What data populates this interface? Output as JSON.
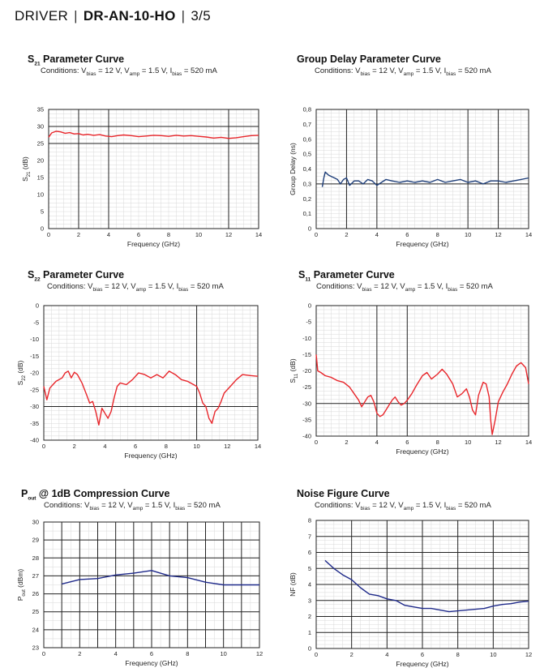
{
  "header": {
    "brand": "DRIVER",
    "model": "DR-AN-10-HO",
    "page": "3/5",
    "sep": "|"
  },
  "conditions_text": {
    "prefix": "Conditions: V",
    "v1_sub": "bias",
    "v1_val": " = 12 V, V",
    "v2_sub": "amp",
    "v2_val": " = 1.5 V, I",
    "i_sub": "bias",
    "i_val": " = 520 mA"
  },
  "chart_data": [
    {
      "id": "s21",
      "type": "line",
      "title_main": "S",
      "title_sub": "21",
      "title_rest": " Parameter Curve",
      "xlabel": "Frequency (GHz)",
      "ylabel_main": "S",
      "ylabel_sub": "21",
      "ylabel_rest": " (dB)",
      "xlim": [
        0,
        14
      ],
      "ylim": [
        0,
        35
      ],
      "xticks": [
        0,
        2,
        4,
        6,
        8,
        10,
        12,
        14
      ],
      "yticks": [
        0,
        5,
        10,
        15,
        20,
        25,
        30,
        35
      ],
      "xmajor": [
        2,
        4,
        12
      ],
      "ymajor": [
        30,
        25
      ],
      "color": "#e8262b",
      "series": [
        {
          "name": "S21",
          "x": [
            0,
            0.2,
            0.5,
            0.8,
            1.1,
            1.4,
            1.7,
            2.0,
            2.3,
            2.6,
            3.0,
            3.4,
            3.8,
            4.2,
            4.6,
            5.0,
            5.5,
            6.0,
            6.5,
            7.0,
            7.5,
            8.0,
            8.5,
            9.0,
            9.5,
            10.0,
            10.5,
            11.0,
            11.5,
            12.0,
            12.5,
            13.0,
            13.5,
            14.0
          ],
          "y": [
            26.8,
            28.1,
            28.6,
            28.4,
            28.0,
            28.2,
            27.8,
            27.9,
            27.5,
            27.7,
            27.4,
            27.6,
            27.2,
            27.0,
            27.3,
            27.5,
            27.3,
            27.0,
            27.2,
            27.4,
            27.3,
            27.1,
            27.4,
            27.2,
            27.3,
            27.1,
            26.9,
            26.6,
            26.8,
            26.5,
            26.7,
            27.0,
            27.3,
            27.4
          ]
        }
      ]
    },
    {
      "id": "gd",
      "type": "line",
      "title_main": "Group Delay Parameter Curve",
      "title_sub": "",
      "title_rest": "",
      "xlabel": "Frequency (GHz)",
      "ylabel_main": "Group Delay (ns)",
      "ylabel_sub": "",
      "ylabel_rest": "",
      "xlim": [
        0,
        14
      ],
      "ylim": [
        0,
        0.8
      ],
      "xticks": [
        0,
        2,
        4,
        6,
        8,
        10,
        12,
        14
      ],
      "yticks": [
        0,
        0.1,
        0.2,
        0.3,
        0.4,
        0.5,
        0.6,
        0.7,
        0.8
      ],
      "ytick_labels": [
        "0",
        "0,1",
        "0,2",
        "0,3",
        "0,4",
        "0,5",
        "0,6",
        "0,7",
        "0,8"
      ],
      "xmajor": [
        2,
        4,
        10,
        12
      ],
      "ymajor": [
        0.3
      ],
      "color": "#1f3f7a",
      "series": [
        {
          "name": "Group Delay",
          "x": [
            0.4,
            0.5,
            0.6,
            0.8,
            1.0,
            1.2,
            1.4,
            1.6,
            1.8,
            2.0,
            2.2,
            2.5,
            2.8,
            3.1,
            3.4,
            3.7,
            4.0,
            4.3,
            4.6,
            5.0,
            5.5,
            6.0,
            6.5,
            7.0,
            7.5,
            8.0,
            8.5,
            9.0,
            9.5,
            10.0,
            10.5,
            11.0,
            11.5,
            12.0,
            12.5,
            13.0,
            13.5,
            14.0
          ],
          "y": [
            0.28,
            0.34,
            0.38,
            0.36,
            0.35,
            0.34,
            0.33,
            0.3,
            0.33,
            0.34,
            0.29,
            0.32,
            0.32,
            0.3,
            0.33,
            0.32,
            0.29,
            0.31,
            0.33,
            0.32,
            0.31,
            0.32,
            0.31,
            0.32,
            0.31,
            0.33,
            0.31,
            0.32,
            0.33,
            0.31,
            0.32,
            0.3,
            0.32,
            0.32,
            0.31,
            0.32,
            0.33,
            0.34
          ]
        }
      ]
    },
    {
      "id": "s22",
      "type": "line",
      "title_main": "S",
      "title_sub": "22",
      "title_rest": " Parameter Curve",
      "xlabel": "Frequency (GHz)",
      "ylabel_main": "S",
      "ylabel_sub": "22",
      "ylabel_rest": " (dB)",
      "xlim": [
        0,
        14
      ],
      "ylim": [
        -40,
        0
      ],
      "xticks": [
        0,
        2,
        4,
        6,
        8,
        10,
        12,
        14
      ],
      "yticks": [
        0,
        -5,
        -10,
        -15,
        -20,
        -25,
        -30,
        -35,
        -40
      ],
      "xmajor": [
        10
      ],
      "ymajor": [
        -30
      ],
      "color": "#e8262b",
      "series": [
        {
          "name": "S22",
          "x": [
            0,
            0.2,
            0.4,
            0.6,
            0.8,
            1.0,
            1.2,
            1.4,
            1.6,
            1.8,
            2.0,
            2.2,
            2.5,
            2.8,
            3.0,
            3.2,
            3.4,
            3.6,
            3.8,
            4.0,
            4.2,
            4.4,
            4.6,
            4.8,
            5.0,
            5.4,
            5.8,
            6.2,
            6.6,
            7.0,
            7.4,
            7.8,
            8.2,
            8.6,
            9.0,
            9.4,
            9.8,
            10.0,
            10.2,
            10.4,
            10.6,
            10.8,
            11.0,
            11.2,
            11.4,
            11.6,
            11.8,
            12.2,
            12.6,
            13.0,
            13.5,
            14.0
          ],
          "y": [
            -24.0,
            -28.0,
            -24.5,
            -23.5,
            -22.5,
            -22.0,
            -21.5,
            -20.0,
            -19.5,
            -21.5,
            -19.8,
            -20.5,
            -23.0,
            -26.5,
            -29.0,
            -28.5,
            -31.5,
            -35.5,
            -30.5,
            -32.0,
            -33.5,
            -31.5,
            -27.5,
            -24.0,
            -23.0,
            -23.5,
            -22.0,
            -20.0,
            -20.5,
            -21.5,
            -20.5,
            -21.5,
            -19.5,
            -20.5,
            -22.0,
            -22.5,
            -23.5,
            -24.0,
            -26.0,
            -29.0,
            -30.0,
            -33.5,
            -35.0,
            -31.5,
            -30.5,
            -28.5,
            -26.0,
            -24.0,
            -22.0,
            -20.5,
            -20.8,
            -21.0
          ]
        }
      ]
    },
    {
      "id": "s11",
      "type": "line",
      "title_main": "S",
      "title_sub": "11",
      "title_rest": " Parameter Curve",
      "xlabel": "Frequency (GHz)",
      "ylabel_main": "S",
      "ylabel_sub": "11",
      "ylabel_rest": " (dB)",
      "xlim": [
        0,
        14
      ],
      "ylim": [
        -40,
        0
      ],
      "xticks": [
        0,
        2,
        4,
        6,
        8,
        10,
        12,
        14
      ],
      "yticks": [
        0,
        -5,
        -10,
        -15,
        -20,
        -25,
        -30,
        -35,
        -40
      ],
      "xmajor": [
        4,
        6
      ],
      "ymajor": [
        -30
      ],
      "color": "#e8262b",
      "series": [
        {
          "name": "S11",
          "x": [
            0,
            0.1,
            0.3,
            0.6,
            1.0,
            1.4,
            1.8,
            2.2,
            2.5,
            2.8,
            3.0,
            3.2,
            3.4,
            3.6,
            3.8,
            4.0,
            4.2,
            4.4,
            4.6,
            4.8,
            5.0,
            5.2,
            5.4,
            5.6,
            5.8,
            6.0,
            6.3,
            6.6,
            7.0,
            7.3,
            7.6,
            8.0,
            8.3,
            8.6,
            9.0,
            9.3,
            9.6,
            9.9,
            10.1,
            10.3,
            10.5,
            10.7,
            11.0,
            11.2,
            11.4,
            11.5,
            11.6,
            11.8,
            12.0,
            12.3,
            12.6,
            12.9,
            13.2,
            13.5,
            13.8,
            14.0
          ],
          "y": [
            -15.0,
            -20.0,
            -20.5,
            -21.5,
            -22.0,
            -23.0,
            -23.5,
            -25.0,
            -27.0,
            -29.0,
            -31.0,
            -29.5,
            -28.0,
            -27.5,
            -29.5,
            -33.0,
            -34.0,
            -33.5,
            -32.0,
            -30.5,
            -29.0,
            -28.0,
            -29.5,
            -30.5,
            -30.0,
            -29.0,
            -27.0,
            -24.5,
            -21.5,
            -20.5,
            -22.5,
            -21.0,
            -19.5,
            -21.0,
            -24.0,
            -28.0,
            -27.0,
            -25.5,
            -28.0,
            -32.0,
            -33.5,
            -27.5,
            -23.5,
            -24.0,
            -28.0,
            -35.0,
            -39.5,
            -35.0,
            -29.5,
            -26.5,
            -24.0,
            -21.0,
            -18.5,
            -17.5,
            -19.0,
            -24.0
          ]
        }
      ]
    },
    {
      "id": "p1db",
      "type": "line",
      "title_main": "P",
      "title_sub": "out",
      "title_rest": " @ 1dB Compression Curve",
      "xlabel": "Frequency (GHz)",
      "ylabel_main": "P",
      "ylabel_sub": "out",
      "ylabel_rest": " (dBm)",
      "xlim": [
        0,
        12
      ],
      "ylim": [
        23,
        30
      ],
      "xticks": [
        0,
        2,
        4,
        6,
        8,
        10,
        12
      ],
      "yticks": [
        23,
        24,
        25,
        26,
        27,
        28,
        29,
        30
      ],
      "xmajor": [
        1,
        2,
        3,
        4,
        5,
        6,
        7,
        8,
        9,
        10,
        11
      ],
      "ymajor": [
        24,
        25,
        26,
        27,
        28,
        29
      ],
      "yhalf": true,
      "color": "#1f2a8a",
      "series": [
        {
          "name": "P1dB",
          "x": [
            1,
            2,
            3,
            4,
            5,
            6,
            7,
            8,
            9,
            10,
            11,
            12
          ],
          "y": [
            26.55,
            26.8,
            26.85,
            27.05,
            27.15,
            27.3,
            27.0,
            26.9,
            26.65,
            26.5,
            26.5,
            26.5
          ]
        }
      ]
    },
    {
      "id": "nf",
      "type": "line",
      "title_main": "Noise Figure Curve",
      "title_sub": "",
      "title_rest": "",
      "xlabel": "Frequency (GHz)",
      "ylabel_main": "NF (dB)",
      "ylabel_sub": "",
      "ylabel_rest": "",
      "xlim": [
        0,
        12
      ],
      "ylim": [
        0,
        8
      ],
      "xticks": [
        0,
        2,
        4,
        6,
        8,
        10,
        12
      ],
      "yticks": [
        0,
        1,
        2,
        3,
        4,
        5,
        6,
        7,
        8
      ],
      "xmajor": [
        2,
        4,
        6,
        8,
        10
      ],
      "ymajor": [
        1,
        2,
        3,
        4,
        5,
        6,
        7
      ],
      "color": "#1f2a8a",
      "series": [
        {
          "name": "NF",
          "x": [
            0.5,
            1.0,
            1.5,
            2.0,
            2.5,
            3.0,
            3.5,
            4.0,
            4.5,
            5.0,
            5.5,
            6.0,
            6.5,
            7.0,
            7.5,
            8.0,
            8.5,
            9.0,
            9.5,
            10.0,
            10.5,
            11.0,
            11.5,
            12.0
          ],
          "y": [
            5.5,
            5.0,
            4.6,
            4.3,
            3.8,
            3.4,
            3.3,
            3.1,
            3.0,
            2.7,
            2.6,
            2.5,
            2.5,
            2.4,
            2.3,
            2.35,
            2.4,
            2.45,
            2.5,
            2.65,
            2.75,
            2.8,
            2.9,
            2.95
          ]
        }
      ]
    }
  ]
}
